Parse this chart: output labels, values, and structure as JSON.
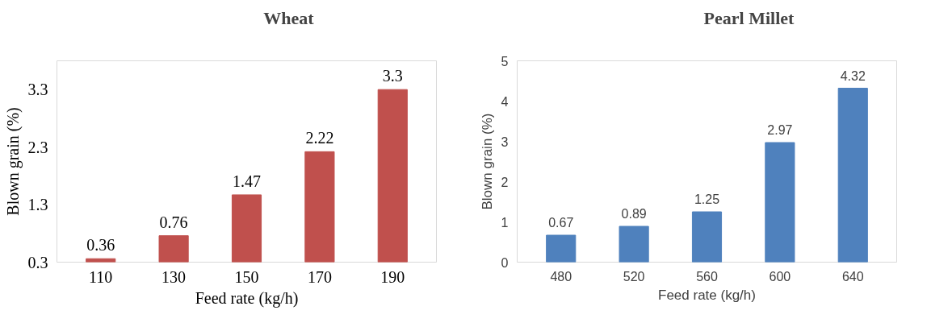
{
  "chart_data": [
    {
      "type": "bar",
      "categories": [
        "110",
        "130",
        "150",
        "170",
        "190"
      ],
      "xlabel": "Feed rate (kg/h)",
      "ylabel": "Blown grain (%)",
      "ylim": [
        0.3,
        3.8
      ],
      "yticks": [
        0.3,
        1.3,
        2.3,
        3.3
      ],
      "data_labels": true,
      "legend": "top",
      "series": [
        {
          "name": "Wheat",
          "color": "#c0504d",
          "values": [
            0.36,
            0.76,
            1.47,
            2.22,
            3.3
          ]
        }
      ]
    },
    {
      "type": "bar",
      "categories": [
        "480",
        "520",
        "560",
        "600",
        "640"
      ],
      "xlabel": "Feed rate (kg/h)",
      "ylabel": "Blown grain (%)",
      "ylim": [
        0,
        5
      ],
      "yticks": [
        0,
        1,
        2,
        3,
        4,
        5
      ],
      "data_labels": true,
      "legend": "top",
      "series": [
        {
          "name": "Pearl Millet",
          "color": "#4f81bd",
          "values": [
            0.67,
            0.89,
            1.25,
            2.97,
            4.32
          ]
        }
      ]
    }
  ]
}
